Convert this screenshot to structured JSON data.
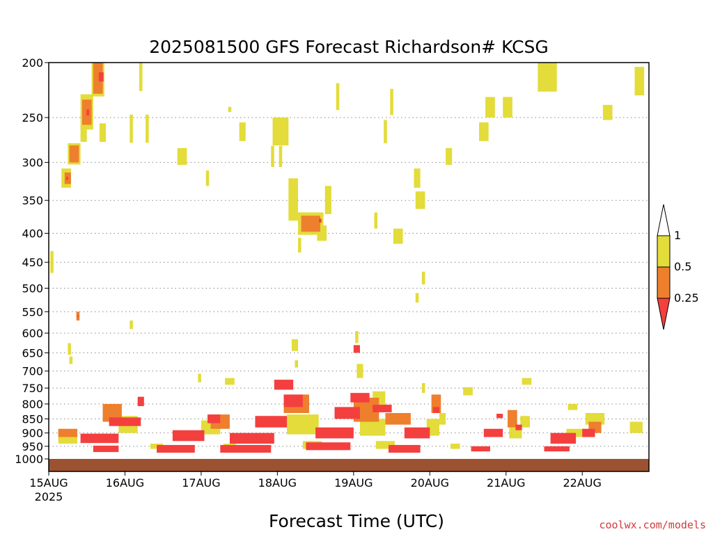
{
  "chart_data": {
    "type": "heatmap",
    "title": "2025081500 GFS Forecast Richardson# KCSG",
    "xlabel": "Forecast Time (UTC)",
    "ylabel": "",
    "credit": "coolwx.com/models",
    "x_ticks": [
      "15AUG",
      "16AUG",
      "17AUG",
      "18AUG",
      "19AUG",
      "20AUG",
      "21AUG",
      "22AUG"
    ],
    "x_tick_hours": [
      0,
      24,
      48,
      72,
      96,
      120,
      144,
      168
    ],
    "x_sublabel": "2025",
    "x_range_hours": [
      0,
      189
    ],
    "y_ticks": [
      200,
      250,
      300,
      350,
      400,
      450,
      500,
      550,
      600,
      650,
      700,
      750,
      800,
      850,
      900,
      950,
      1000
    ],
    "y_range_hpa": [
      200,
      1000
    ],
    "y_scale": "log-pressure (inverted)",
    "grid": "dotted horizontal at pressure ticks",
    "legend": {
      "placement": "right",
      "labels": [
        "1",
        "0.5",
        "0.25"
      ],
      "colors": {
        "white": "#ffffff",
        "yellow": "#e3dc3a",
        "orange": "#ee7f2d",
        "red": "#f43f3f"
      },
      "bins": [
        "Ri < 0.25 (red)",
        "0.25 to 0.5 (orange)",
        "0.5 to 1 (yellow)",
        "Ri > 1 (white)"
      ]
    },
    "surface_band": {
      "color": "#9c5230",
      "from_hpa": 1000
    },
    "series": [
      {
        "level": "red",
        "color": "#f43f3f",
        "cells": [
          [
            16.5,
            212,
            1.5,
            8
          ],
          [
            12.3,
            245,
            0.8,
            6
          ],
          [
            5.8,
            320,
            0.6,
            4
          ],
          [
            85.5,
            380,
            0.8,
            6
          ],
          [
            9.2,
            560,
            0.5,
            3
          ],
          [
            29.0,
            792,
            2.0,
            30
          ],
          [
            24.0,
            860,
            10.0,
            30
          ],
          [
            16.0,
            920,
            12.0,
            35
          ],
          [
            18.0,
            960,
            8.0,
            25
          ],
          [
            52.0,
            850,
            4.0,
            30
          ],
          [
            44.0,
            910,
            10.0,
            40
          ],
          [
            40.0,
            960,
            12.0,
            30
          ],
          [
            74.0,
            740,
            6.0,
            30
          ],
          [
            77.0,
            790,
            6.0,
            40
          ],
          [
            70.0,
            860,
            10.0,
            40
          ],
          [
            64.0,
            920,
            14.0,
            40
          ],
          [
            62.0,
            960,
            16.0,
            30
          ],
          [
            98.0,
            780,
            6.0,
            30
          ],
          [
            94.0,
            830,
            8.0,
            40
          ],
          [
            90.0,
            900,
            12.0,
            40
          ],
          [
            88.0,
            950,
            14.0,
            30
          ],
          [
            97.0,
            640,
            2.0,
            20
          ],
          [
            105.0,
            815,
            6.0,
            25
          ],
          [
            122.0,
            820,
            2.0,
            20
          ],
          [
            116.0,
            900,
            8.0,
            40
          ],
          [
            112.0,
            960,
            10.0,
            30
          ],
          [
            140.0,
            900,
            6.0,
            30
          ],
          [
            136.0,
            960,
            6.0,
            20
          ],
          [
            148.0,
            880,
            2.0,
            20
          ],
          [
            142.0,
            840,
            2.0,
            15
          ],
          [
            162.0,
            920,
            8.0,
            40
          ],
          [
            160.0,
            960,
            8.0,
            20
          ],
          [
            170.0,
            900,
            4.0,
            30
          ]
        ]
      },
      {
        "level": "orange",
        "color": "#ee7f2d",
        "cells": [
          [
            15.5,
            212,
            3.0,
            30
          ],
          [
            12.0,
            245,
            3.0,
            25
          ],
          [
            8.0,
            290,
            3.0,
            20
          ],
          [
            6.0,
            320,
            2.0,
            15
          ],
          [
            82.5,
            385,
            6.0,
            25
          ],
          [
            9.2,
            560,
            1.0,
            20
          ],
          [
            122.0,
            800,
            3.0,
            60
          ],
          [
            20.0,
            830,
            6.0,
            60
          ],
          [
            54.0,
            860,
            6.0,
            50
          ],
          [
            78.0,
            800,
            8.0,
            60
          ],
          [
            100.0,
            820,
            8.0,
            80
          ],
          [
            110.0,
            850,
            8.0,
            40
          ],
          [
            146.0,
            850,
            3.0,
            60
          ],
          [
            172.0,
            880,
            4.0,
            40
          ],
          [
            6.0,
            900,
            6.0,
            30
          ]
        ]
      },
      {
        "level": "yellow",
        "color": "#e3dc3a",
        "cells": [
          [
            15.5,
            212,
            4.0,
            35
          ],
          [
            29.0,
            212,
            1.0,
            25
          ],
          [
            12.0,
            245,
            4.0,
            35
          ],
          [
            8.0,
            290,
            4.0,
            25
          ],
          [
            5.5,
            320,
            3.0,
            25
          ],
          [
            11.0,
            266,
            2.0,
            20
          ],
          [
            17.0,
            266,
            2.0,
            20
          ],
          [
            26.0,
            262,
            1.0,
            30
          ],
          [
            31.0,
            262,
            1.0,
            30
          ],
          [
            42.0,
            293,
            3.0,
            20
          ],
          [
            50.0,
            320,
            1.0,
            20
          ],
          [
            57.0,
            242,
            1.0,
            5
          ],
          [
            61.0,
            265,
            2.0,
            20
          ],
          [
            73.0,
            265,
            5.0,
            30
          ],
          [
            70.5,
            293,
            1.0,
            25
          ],
          [
            73.0,
            293,
            1.0,
            25
          ],
          [
            82.5,
            385,
            8.0,
            35
          ],
          [
            77.0,
            350,
            3.0,
            60
          ],
          [
            79.0,
            420,
            1.0,
            25
          ],
          [
            86.0,
            400,
            3.0,
            25
          ],
          [
            88.0,
            350,
            2.0,
            40
          ],
          [
            110.0,
            405,
            3.0,
            25
          ],
          [
            91.0,
            230,
            1.0,
            25
          ],
          [
            103.0,
            380,
            1.0,
            25
          ],
          [
            108.0,
            235,
            1.0,
            25
          ],
          [
            106.0,
            265,
            1.0,
            25
          ],
          [
            116.0,
            320,
            2.0,
            25
          ],
          [
            117.0,
            350,
            3.0,
            25
          ],
          [
            118.0,
            480,
            1.0,
            25
          ],
          [
            116.0,
            520,
            1.0,
            20
          ],
          [
            126.0,
            293,
            2.0,
            20
          ],
          [
            139.0,
            240,
            3.0,
            20
          ],
          [
            137.0,
            265,
            3.0,
            20
          ],
          [
            144.5,
            240,
            3.0,
            20
          ],
          [
            157.0,
            210,
            6.0,
            30
          ],
          [
            176.0,
            245,
            3.0,
            15
          ],
          [
            186.0,
            216,
            3.0,
            25
          ],
          [
            1.0,
            450,
            1.0,
            40
          ],
          [
            6.5,
            640,
            1.0,
            30
          ],
          [
            7.0,
            670,
            1.0,
            20
          ],
          [
            26.0,
            580,
            1.0,
            20
          ],
          [
            47.5,
            720,
            1.0,
            25
          ],
          [
            57.0,
            730,
            3.0,
            20
          ],
          [
            78.0,
            680,
            1.0,
            20
          ],
          [
            77.5,
            630,
            2.0,
            30
          ],
          [
            97.0,
            610,
            1.0,
            30
          ],
          [
            98.0,
            700,
            2.0,
            40
          ],
          [
            104.0,
            790,
            4.0,
            60
          ],
          [
            118.0,
            750,
            1.0,
            30
          ],
          [
            132.0,
            760,
            3.0,
            25
          ],
          [
            150.5,
            730,
            3.0,
            20
          ],
          [
            150.0,
            860,
            3.0,
            40
          ],
          [
            165.0,
            810,
            3.0,
            20
          ],
          [
            172.0,
            850,
            6.0,
            40
          ],
          [
            185.0,
            880,
            4.0,
            40
          ],
          [
            25.0,
            870,
            6.0,
            60
          ],
          [
            51.0,
            880,
            6.0,
            50
          ],
          [
            80.0,
            870,
            10.0,
            70
          ],
          [
            102.0,
            880,
            8.0,
            60
          ],
          [
            121.0,
            880,
            4.0,
            60
          ],
          [
            124.0,
            850,
            2.0,
            40
          ],
          [
            147.0,
            900,
            4.0,
            40
          ],
          [
            166.0,
            900,
            6.0,
            30
          ],
          [
            128.0,
            950,
            3.0,
            20
          ],
          [
            6.0,
            920,
            6.0,
            40
          ],
          [
            34.0,
            950,
            4.0,
            20
          ],
          [
            57.0,
            950,
            4.0,
            20
          ],
          [
            83.0,
            945,
            6.0,
            30
          ],
          [
            106.0,
            945,
            6.0,
            30
          ]
        ]
      }
    ]
  }
}
